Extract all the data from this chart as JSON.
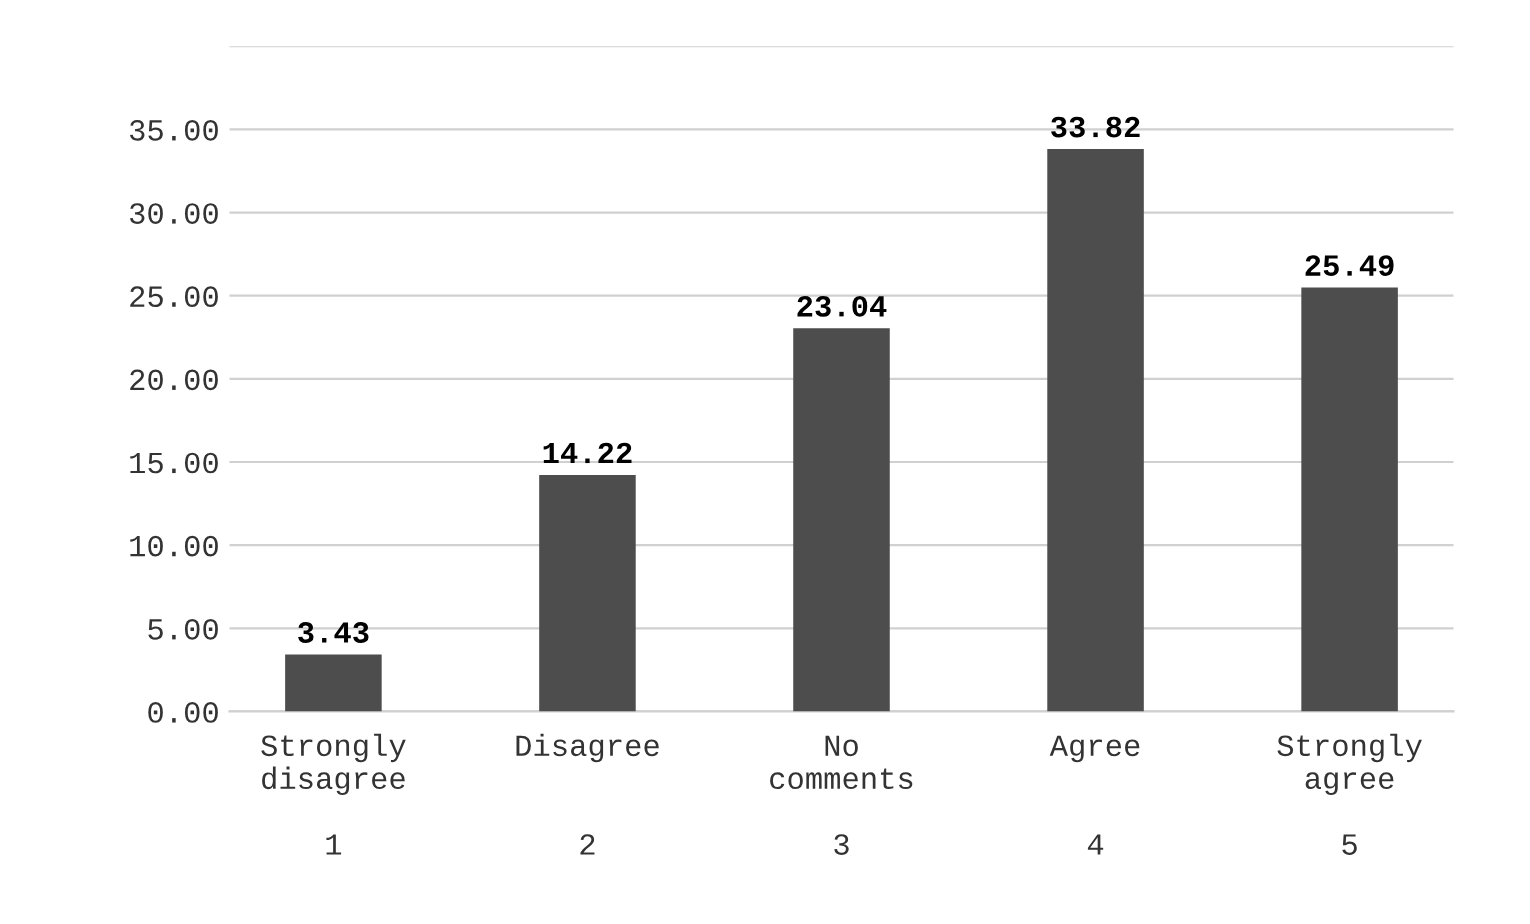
{
  "chart_data": {
    "type": "bar",
    "categories": [
      "Strongly\ndisagree\n\n1",
      "Disagree\n\n\n2",
      "No\ncomments\n\n3",
      "Agree\n\n\n4",
      "Strongly\nagree\n\n5"
    ],
    "values": [
      3.43,
      14.22,
      23.04,
      33.82,
      25.49
    ],
    "color": "#4d4d4d",
    "ylim": [
      0,
      40
    ],
    "yticks": [
      {
        "value": 0,
        "label": "0.00"
      },
      {
        "value": 5,
        "label": "5.00"
      },
      {
        "value": 10,
        "label": "10.00"
      },
      {
        "value": 15,
        "label": "15.00"
      },
      {
        "value": 20,
        "label": "20.00"
      },
      {
        "value": 25,
        "label": "25.00"
      },
      {
        "value": 30,
        "label": "30.00"
      },
      {
        "value": 35,
        "label": "35.00"
      },
      {
        "value": 40,
        "label": null
      }
    ],
    "grid": "y",
    "data_labels": true
  }
}
